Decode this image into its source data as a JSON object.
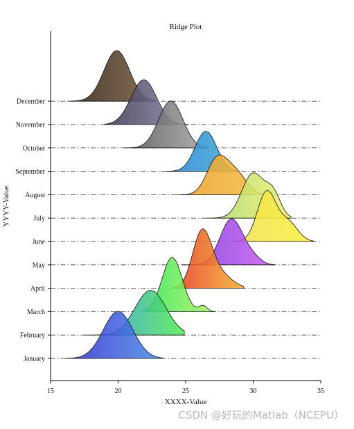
{
  "chart_data": {
    "type": "ridgeline",
    "title": "Ridge Plot",
    "xlabel": "XXXX-Value",
    "ylabel": "YYYY-Value",
    "xlim": [
      15,
      35
    ],
    "xticks": [
      15,
      20,
      25,
      30,
      35
    ],
    "grid": "dash-dot horizontal baselines per category",
    "categories": [
      "January",
      "February",
      "March",
      "April",
      "May",
      "June",
      "July",
      "August",
      "September",
      "October",
      "November",
      "December"
    ],
    "series": [
      {
        "name": "January",
        "baseline_index": 0,
        "range": [
          16.1,
          23.3
        ],
        "peaks": [
          {
            "x": 20.0,
            "height": 2.0,
            "sigma": 1.1
          }
        ],
        "colors": [
          "#3a2fd0",
          "#4a90e8"
        ]
      },
      {
        "name": "February",
        "baseline_index": 1,
        "range": [
          17.5,
          24.9
        ],
        "peaks": [
          {
            "x": 22.4,
            "height": 1.9,
            "sigma": 1.15
          }
        ],
        "colors": [
          "#2f8fe8",
          "#52eb52"
        ]
      },
      {
        "name": "March",
        "baseline_index": 2,
        "range": [
          22.0,
          27.2
        ],
        "peaks": [
          {
            "x": 24.0,
            "height": 2.3,
            "sigma": 0.75
          },
          {
            "x": 26.3,
            "height": 0.25,
            "sigma": 0.3
          }
        ],
        "colors": [
          "#38e85a",
          "#b0f060"
        ]
      },
      {
        "name": "April",
        "baseline_index": 3,
        "range": [
          24.1,
          29.3
        ],
        "peaks": [
          {
            "x": 26.2,
            "height": 2.3,
            "sigma": 0.7
          },
          {
            "x": 27.5,
            "height": 0.6,
            "sigma": 0.9
          }
        ],
        "colors": [
          "#e83a20",
          "#f5b030"
        ]
      },
      {
        "name": "May",
        "baseline_index": 4,
        "range": [
          24.7,
          31.6
        ],
        "peaks": [
          {
            "x": 28.4,
            "height": 1.95,
            "sigma": 0.85
          },
          {
            "x": 30.0,
            "height": 0.25,
            "sigma": 0.6
          }
        ],
        "colors": [
          "#7a3ae0",
          "#d060f0"
        ]
      },
      {
        "name": "June",
        "baseline_index": 5,
        "range": [
          28.2,
          34.5
        ],
        "peaks": [
          {
            "x": 31.0,
            "height": 2.1,
            "sigma": 0.7
          },
          {
            "x": 32.6,
            "height": 0.8,
            "sigma": 0.7
          }
        ],
        "colors": [
          "#f5e050",
          "#f8f040"
        ]
      },
      {
        "name": "July",
        "baseline_index": 6,
        "range": [
          26.5,
          32.8
        ],
        "peaks": [
          {
            "x": 30.0,
            "height": 1.9,
            "sigma": 0.85
          },
          {
            "x": 31.5,
            "height": 0.9,
            "sigma": 0.55
          }
        ],
        "colors": [
          "#a8d870",
          "#f0f070"
        ]
      },
      {
        "name": "August",
        "baseline_index": 7,
        "range": [
          24.3,
          31.6
        ],
        "peaks": [
          {
            "x": 27.3,
            "height": 1.45,
            "sigma": 0.75
          },
          {
            "x": 28.7,
            "height": 0.9,
            "sigma": 0.8
          }
        ],
        "colors": [
          "#f0a030",
          "#f0c040"
        ]
      },
      {
        "name": "September",
        "baseline_index": 8,
        "range": [
          23.5,
          28.8
        ],
        "peaks": [
          {
            "x": 26.5,
            "height": 1.7,
            "sigma": 0.8
          }
        ],
        "colors": [
          "#2a80d8",
          "#40b0d0"
        ]
      },
      {
        "name": "October",
        "baseline_index": 9,
        "range": [
          20.5,
          26.7
        ],
        "peaks": [
          {
            "x": 23.9,
            "height": 2.0,
            "sigma": 0.9
          }
        ],
        "colors": [
          "#555555",
          "#a8a8a8"
        ]
      },
      {
        "name": "November",
        "baseline_index": 10,
        "range": [
          19.0,
          25.2
        ],
        "peaks": [
          {
            "x": 21.9,
            "height": 1.9,
            "sigma": 0.95
          }
        ],
        "colors": [
          "#3a3850",
          "#8a88a8"
        ]
      },
      {
        "name": "December",
        "baseline_index": 11,
        "range": [
          16.3,
          22.8
        ],
        "peaks": [
          {
            "x": 19.9,
            "height": 2.15,
            "sigma": 0.95
          }
        ],
        "colors": [
          "#2f2218",
          "#7a5a3a"
        ]
      }
    ]
  },
  "watermark": "CSDN @好玩的Matlab（NCEPU）"
}
